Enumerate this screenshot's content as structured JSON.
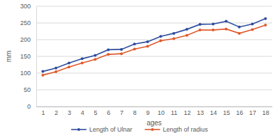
{
  "chart_data": {
    "type": "line",
    "x_label": "ages",
    "y_label": "mm",
    "categories": [
      "1",
      "2",
      "3",
      "4",
      "5",
      "6",
      "7",
      "8",
      "9",
      "10",
      "11",
      "12",
      "13",
      "14",
      "15",
      "16",
      "17",
      "18"
    ],
    "series": [
      {
        "name": "Length of Ulnar",
        "color": "#2e4d9e",
        "marker": "circle",
        "values": [
          105,
          115,
          130,
          143,
          153,
          170,
          171,
          187,
          194,
          210,
          219,
          231,
          246,
          247,
          255,
          238,
          247,
          263
        ]
      },
      {
        "name": "Length of radius",
        "color": "#e0592a",
        "marker": "circle",
        "values": [
          94,
          104,
          118,
          130,
          141,
          156,
          158,
          172,
          180,
          197,
          203,
          213,
          229,
          229,
          232,
          219,
          230,
          244
        ]
      }
    ],
    "ylim": [
      0,
      300
    ],
    "yticks": [
      0,
      50,
      100,
      150,
      200,
      250,
      300
    ],
    "grid": true,
    "legend": "bottom"
  }
}
